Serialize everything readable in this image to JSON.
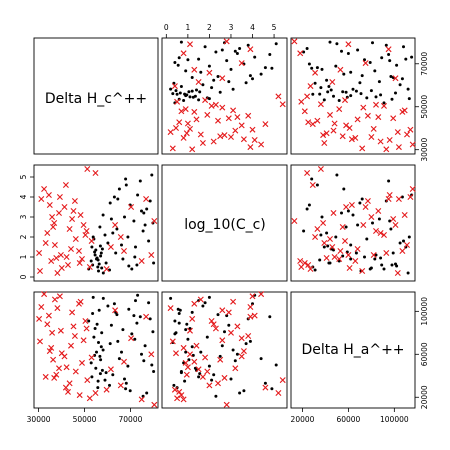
{
  "chart_data": {
    "type": "scatter",
    "subtype": "pairs-matrix",
    "variables": [
      {
        "label": "Delta H_c^++",
        "range": [
          28000,
          82000
        ]
      },
      {
        "label": "log_10(C_c)",
        "range": [
          -0.2,
          5.6
        ]
      },
      {
        "label": "Delta H_a^++",
        "range": [
          10000,
          118000
        ]
      }
    ],
    "axis_ticks": {
      "top": {
        "var": 1,
        "ticks": [
          "0",
          "1",
          "2",
          "3",
          "4",
          "5"
        ],
        "values": [
          0,
          1,
          2,
          3,
          4,
          5
        ]
      },
      "right": {
        "var": 0,
        "ticks": [
          "30000",
          "50000",
          "70000"
        ],
        "values": [
          30000,
          50000,
          70000
        ]
      },
      "left": {
        "var": 1,
        "ticks": [
          "0",
          "1",
          "2",
          "3",
          "4",
          "5"
        ],
        "values": [
          0,
          1,
          2,
          3,
          4,
          5
        ]
      },
      "bottom": {
        "var": 0,
        "ticks": [
          "30000",
          "50000",
          "70000"
        ],
        "values": [
          30000,
          50000,
          70000
        ]
      },
      "right2": {
        "var": 2,
        "ticks": [
          "20000",
          "60000",
          "100000"
        ],
        "values": [
          20000,
          60000,
          100000
        ]
      },
      "bottom2": {
        "var": 2,
        "ticks": [
          "20000",
          "60000",
          "100000"
        ],
        "values": [
          20000,
          60000,
          100000
        ]
      }
    },
    "series": [
      {
        "marker": "dot",
        "color": "#000000",
        "points": [
          [
            55200,
            0.9,
            62000
          ],
          [
            57800,
            1.4,
            45000
          ],
          [
            53500,
            0.6,
            98000
          ],
          [
            56100,
            0.3,
            71000
          ],
          [
            58900,
            2.1,
            36000
          ],
          [
            54600,
            1.1,
            84000
          ],
          [
            52900,
            0.8,
            52000
          ],
          [
            60200,
            1.7,
            105000
          ],
          [
            55800,
            0.5,
            29000
          ],
          [
            57300,
            1.2,
            67000
          ],
          [
            51800,
            0.4,
            91000
          ],
          [
            56700,
            2.5,
            58000
          ],
          [
            59400,
            0.7,
            43000
          ],
          [
            54100,
            1.9,
            76000
          ],
          [
            58200,
            0.2,
            112000
          ],
          [
            53200,
            1.5,
            39000
          ],
          [
            55500,
            0.95,
            88000
          ],
          [
            57000,
            1.05,
            55000
          ],
          [
            56400,
            0.65,
            101000
          ],
          [
            54900,
            1.35,
            47000
          ],
          [
            64500,
            3.9,
            72000
          ],
          [
            68200,
            4.6,
            33000
          ],
          [
            71500,
            2.8,
            96000
          ],
          [
            74800,
            3.3,
            60000
          ],
          [
            77900,
            1.8,
            108000
          ],
          [
            62300,
            2.2,
            41000
          ],
          [
            66700,
            0.9,
            83000
          ],
          [
            69900,
            3.6,
            26000
          ],
          [
            73100,
            4.1,
            115000
          ],
          [
            76400,
            2.6,
            68000
          ],
          [
            79300,
            5.1,
            50000
          ],
          [
            63600,
            1.2,
            99000
          ],
          [
            67400,
            3.0,
            37000
          ],
          [
            70600,
            0.4,
            79000
          ],
          [
            75500,
            2.3,
            21000
          ],
          [
            78600,
            3.8,
            93000
          ],
          [
            65200,
            4.4,
            56000
          ],
          [
            72200,
            1.5,
            110000
          ],
          [
            80100,
            0.7,
            44000
          ],
          [
            61700,
            2.9,
            87000
          ],
          [
            58100,
            3.1,
            64000
          ],
          [
            60900,
            0.35,
            31000
          ],
          [
            63000,
            4.0,
            107000
          ],
          [
            68900,
            2.0,
            49000
          ],
          [
            71900,
            1.0,
            74000
          ],
          [
            74300,
            4.8,
            95000
          ],
          [
            77100,
            3.4,
            24000
          ],
          [
            79800,
            2.7,
            81000
          ],
          [
            66100,
            1.6,
            62000
          ],
          [
            69300,
            0.55,
            102000
          ],
          [
            55900,
            0.85,
            35000
          ],
          [
            54400,
            1.25,
            59000
          ],
          [
            57500,
            0.45,
            80000
          ],
          [
            53800,
            2.0,
            113000
          ],
          [
            56900,
            1.55,
            42000
          ],
          [
            75800,
            3.2,
            54000
          ],
          [
            72800,
            0.6,
            89000
          ],
          [
            67900,
            4.9,
            28000
          ],
          [
            64100,
            2.4,
            97000
          ],
          [
            61200,
            3.7,
            70000
          ]
        ]
      },
      {
        "marker": "x",
        "color": "#e41a1c",
        "points": [
          [
            31200,
            3.9,
            104000
          ],
          [
            33800,
            2.2,
            88000
          ],
          [
            35500,
            0.8,
            66000
          ],
          [
            37100,
            1.6,
            111000
          ],
          [
            38900,
            3.2,
            47000
          ],
          [
            30600,
            0.3,
            72000
          ],
          [
            34500,
            4.1,
            96000
          ],
          [
            36800,
            2.7,
            38000
          ],
          [
            39700,
            1.1,
            82000
          ],
          [
            41300,
            3.5,
            58000
          ],
          [
            42800,
            0.6,
            25000
          ],
          [
            44600,
            2.9,
            99000
          ],
          [
            46200,
            1.9,
            44000
          ],
          [
            32400,
            4.4,
            116000
          ],
          [
            40100,
            0.45,
            61000
          ],
          [
            43500,
            2.4,
            33000
          ],
          [
            45800,
            3.8,
            77000
          ],
          [
            47600,
            1.3,
            107000
          ],
          [
            48900,
            0.9,
            52000
          ],
          [
            50400,
            2.1,
            91000
          ],
          [
            33100,
            1.7,
            39000
          ],
          [
            35900,
            3.0,
            80000
          ],
          [
            38200,
            0.2,
            103000
          ],
          [
            41900,
            4.6,
            29000
          ],
          [
            44100,
            1.4,
            68000
          ],
          [
            36300,
            2.5,
            55000
          ],
          [
            39300,
            4.0,
            114000
          ],
          [
            42200,
            1.0,
            48000
          ],
          [
            45200,
            3.3,
            86000
          ],
          [
            47900,
            0.7,
            22000
          ],
          [
            51200,
            5.4,
            36000
          ],
          [
            49600,
            2.6,
            73000
          ],
          [
            30200,
            1.2,
            93000
          ],
          [
            34900,
            3.6,
            63000
          ],
          [
            37700,
            0.95,
            41000
          ],
          [
            52300,
            0.5,
            19000
          ],
          [
            53100,
            1.8,
            57000
          ],
          [
            54800,
            5.2,
            24000
          ],
          [
            50900,
            2.3,
            84000
          ],
          [
            48300,
            3.1,
            109000
          ],
          [
            61500,
            1.5,
            46000
          ],
          [
            65800,
            2.0,
            31000
          ],
          [
            70300,
            3.5,
            75000
          ],
          [
            74900,
            0.8,
            18000
          ],
          [
            79100,
            1.1,
            60000
          ],
          [
            80400,
            2.8,
            13000
          ],
          [
            76800,
            3.9,
            95000
          ],
          [
            59600,
            0.4,
            27000
          ],
          [
            63300,
            2.6,
            101000
          ],
          [
            67200,
            1.3,
            53000
          ]
        ]
      }
    ]
  }
}
